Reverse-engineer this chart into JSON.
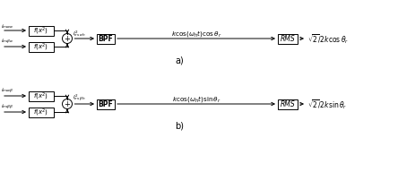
{
  "bg_color": "#ffffff",
  "diagram_a": {
    "label_top": "$i_{es\\alpha\\alpha}$",
    "label_bot": "$i_{es\\beta\\alpha}$",
    "box1_label": "$f(x^2)$",
    "box2_label": "$f(x^2)$",
    "after_sum_label": "$I^2_{es\\ \\alpha h}$",
    "bpf_label": "BPF",
    "signal_label": "$k\\cos(\\omega_h t)\\cos\\theta_r$",
    "rms_label": "RMS",
    "output_label": "$\\sqrt{2}/2k\\cos\\theta_r$",
    "tag": "a)"
  },
  "diagram_b": {
    "label_top": "$i_{es\\alpha\\beta}$",
    "label_bot": "$i_{es\\beta\\beta}$",
    "box1_label": "$f(x^2)$",
    "box2_label": "$f(x^2)$",
    "after_sum_label": "$I^2_{es\\ \\beta h}$",
    "bpf_label": "BPF",
    "signal_label": "$k\\cos(\\omega_h t)\\sin\\theta_r$",
    "rms_label": "RMS",
    "output_label": "$\\sqrt{2}/2k\\sin\\theta_r$",
    "tag": "b)"
  }
}
